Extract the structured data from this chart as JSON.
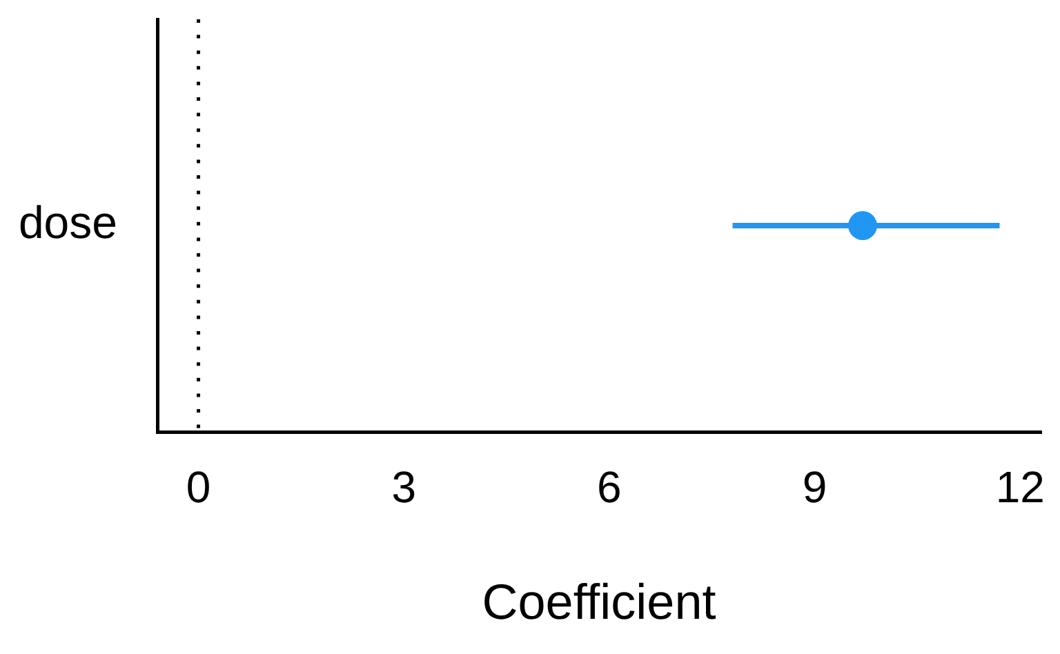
{
  "chart_data": {
    "type": "scatter",
    "orientation": "horizontal",
    "categories": [
      "dose"
    ],
    "values": [
      9.7
    ],
    "errors": [
      [
        7.8,
        11.7
      ]
    ],
    "color": "#2196f3",
    "marker": "circle",
    "xlabel": "Coefficient",
    "xlim": [
      -0.6,
      12.3
    ],
    "xticks": [
      0,
      3,
      6,
      9,
      12
    ],
    "ref_lines": [
      {
        "axis": "x",
        "value": 0,
        "color": "#000000",
        "line_style": "dotted"
      }
    ]
  }
}
